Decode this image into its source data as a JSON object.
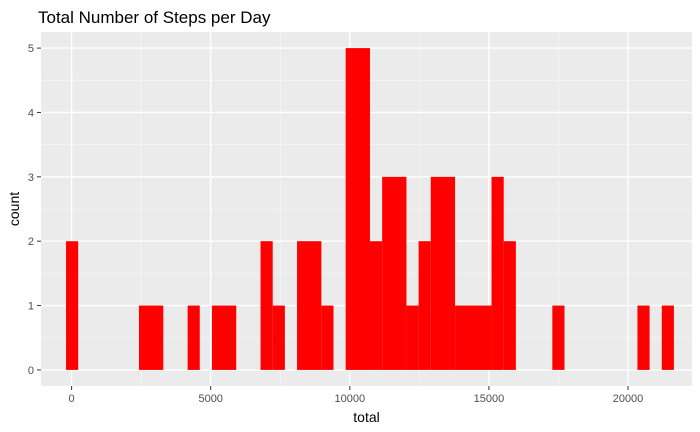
{
  "chart_data": {
    "type": "bar",
    "title": "Total Number of Steps per Day",
    "xlabel": "total",
    "ylabel": "count",
    "xlim": [
      -1100,
      22300
    ],
    "ylim": [
      -0.25,
      5.25
    ],
    "x_ticks": [
      0,
      5000,
      10000,
      15000,
      20000
    ],
    "x_tick_labels": [
      "0",
      "5000",
      "10000",
      "15000",
      "20000"
    ],
    "y_ticks": [
      0,
      1,
      2,
      3,
      4,
      5
    ],
    "y_tick_labels": [
      "0",
      "1",
      "2",
      "3",
      "4",
      "5"
    ],
    "grid": true,
    "legend": "none",
    "bin_width": 437,
    "series": [
      {
        "bins": [
          {
            "start": -200,
            "end": 237,
            "count": 2
          },
          {
            "start": 2422,
            "end": 3296,
            "count": 1
          },
          {
            "start": 4170,
            "end": 4607,
            "count": 1
          },
          {
            "start": 5044,
            "end": 5918,
            "count": 1
          },
          {
            "start": 6792,
            "end": 7229,
            "count": 2
          },
          {
            "start": 7229,
            "end": 7666,
            "count": 1
          },
          {
            "start": 8103,
            "end": 8977,
            "count": 2
          },
          {
            "start": 8977,
            "end": 9414,
            "count": 1
          },
          {
            "start": 9851,
            "end": 10725,
            "count": 5
          },
          {
            "start": 10725,
            "end": 11162,
            "count": 2
          },
          {
            "start": 11162,
            "end": 12036,
            "count": 3
          },
          {
            "start": 12036,
            "end": 12473,
            "count": 1
          },
          {
            "start": 12473,
            "end": 12910,
            "count": 2
          },
          {
            "start": 12910,
            "end": 13784,
            "count": 3
          },
          {
            "start": 13784,
            "end": 15095,
            "count": 1
          },
          {
            "start": 15095,
            "end": 15532,
            "count": 3
          },
          {
            "start": 15532,
            "end": 15969,
            "count": 2
          },
          {
            "start": 17280,
            "end": 17717,
            "count": 1
          },
          {
            "start": 20339,
            "end": 20776,
            "count": 1
          },
          {
            "start": 21213,
            "end": 21650,
            "count": 1
          }
        ]
      }
    ],
    "colors": {
      "bar": "#ff0000",
      "panel": "#ebebeb",
      "grid_major": "#ffffff",
      "grid_minor": "#f5f5f5",
      "tick_text": "#4d4d4d",
      "tick_mark": "#333333"
    }
  }
}
